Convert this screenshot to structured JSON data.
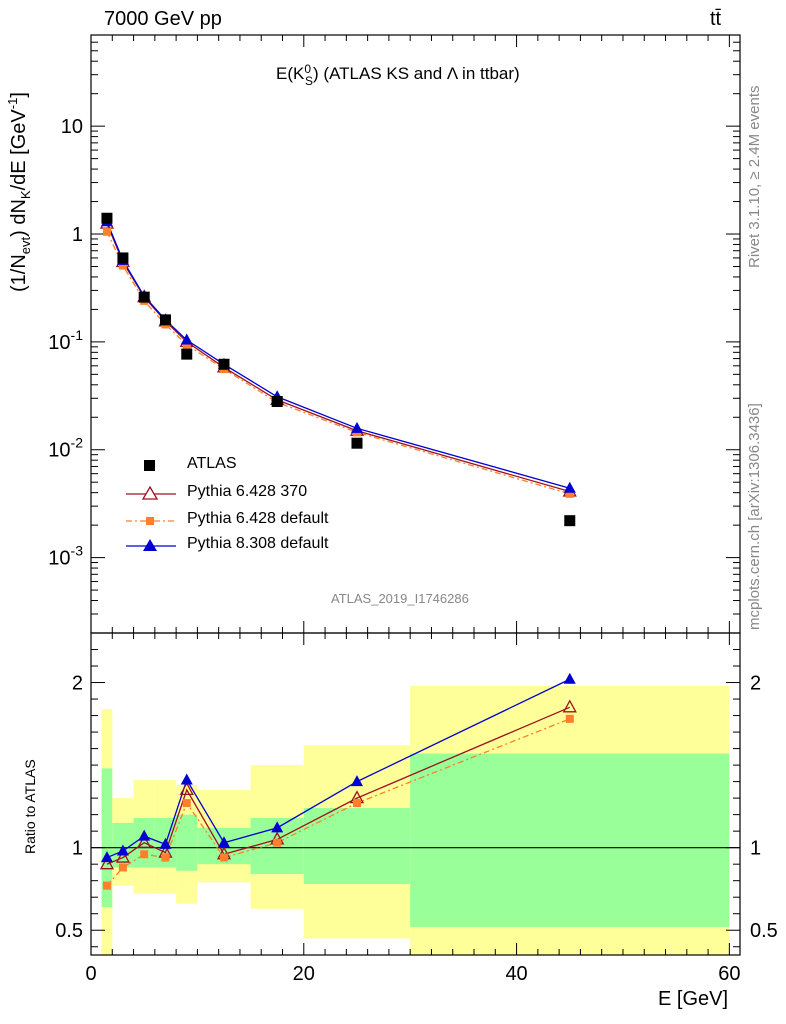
{
  "header": {
    "energy_label": "7000 GeV pp",
    "process_label": "tt̄"
  },
  "side_labels": {
    "rivet": "Rivet 3.1.10, ≥ 2.4M events",
    "mcplots": "mcplots.cern.ch [arXiv:1306.3436]"
  },
  "chart_data": [
    {
      "type": "scatter",
      "title_prefix": "E(K",
      "title_sup": "0",
      "title_sub": "S",
      "title_suffix": ") (ATLAS KS and Λ in ttbar)",
      "analysis_label": "ATLAS_2019_I1746286",
      "ylabel": "(1/N_evt) dN_K/dE [GeV^-1]",
      "ylabel_parts": {
        "a": "(1/N",
        "b": "evt",
        "c": ") dN",
        "d": "K",
        "e": "/dE [GeV",
        "f": "-1",
        "g": "]"
      },
      "yscale": "log",
      "ylim": [
        0.0002,
        70
      ],
      "xlim": [
        0,
        61
      ],
      "yticks": [
        {
          "value": 0.001,
          "base": "10",
          "exp": "-3"
        },
        {
          "value": 0.01,
          "base": "10",
          "exp": "-2"
        },
        {
          "value": 0.1,
          "base": "10",
          "exp": "-1"
        },
        {
          "value": 1,
          "base": "1",
          "exp": ""
        },
        {
          "value": 10,
          "base": "10",
          "exp": ""
        }
      ],
      "bin_edges": [
        1,
        2,
        4,
        6,
        8,
        10,
        15,
        20,
        30,
        60
      ],
      "x": [
        1.5,
        3,
        5,
        7,
        9,
        12.5,
        17.5,
        25,
        45
      ],
      "series": [
        {
          "name": "ATLAS",
          "color": "#000000",
          "marker": "square",
          "line": "none",
          "values": [
            1.4,
            0.6,
            0.26,
            0.16,
            0.077,
            0.062,
            0.028,
            0.0115,
            0.0022
          ]
        },
        {
          "name": "Pythia 6.428 370",
          "color": "#a0111e",
          "marker": "triangle-open",
          "line": "solid",
          "values": [
            1.25,
            0.55,
            0.26,
            0.155,
            0.1,
            0.058,
            0.029,
            0.015,
            0.0041
          ]
        },
        {
          "name": "Pythia 6.428 default",
          "color": "#ff7f2a",
          "marker": "square-small",
          "line": "dashdot",
          "values": [
            1.05,
            0.51,
            0.24,
            0.145,
            0.094,
            0.056,
            0.0275,
            0.0145,
            0.0039
          ]
        },
        {
          "name": "Pythia 8.308 default",
          "color": "#0000d0",
          "marker": "triangle",
          "line": "solid",
          "values": [
            1.3,
            0.57,
            0.265,
            0.16,
            0.104,
            0.062,
            0.031,
            0.0158,
            0.0044
          ]
        }
      ]
    },
    {
      "type": "scatter",
      "ylabel": "Ratio to ATLAS",
      "xlabel": "E [GeV]",
      "ylim": [
        0.35,
        2.3
      ],
      "xlim": [
        0,
        61
      ],
      "yticks": [
        0.5,
        1,
        2
      ],
      "ytick_labels": [
        "0.5",
        "1",
        "2"
      ],
      "xticks": [
        0,
        20,
        40,
        60
      ],
      "xtick_labels": [
        "0",
        "20",
        "40",
        "60"
      ],
      "reference_line": 1,
      "band_inner": [
        [
          0.64,
          1.48
        ],
        [
          0.88,
          1.15
        ],
        [
          0.88,
          1.18
        ],
        [
          0.88,
          1.18
        ],
        [
          0.86,
          1.2
        ],
        [
          0.9,
          1.12
        ],
        [
          0.84,
          1.18
        ],
        [
          0.78,
          1.24
        ],
        [
          0.52,
          1.57
        ]
      ],
      "band_outer": [
        [
          0.3,
          1.84
        ],
        [
          0.77,
          1.3
        ],
        [
          0.72,
          1.41
        ],
        [
          0.72,
          1.41
        ],
        [
          0.66,
          1.38
        ],
        [
          0.79,
          1.35
        ],
        [
          0.63,
          1.5
        ],
        [
          0.45,
          1.62
        ],
        [
          0.3,
          1.98
        ]
      ],
      "band_colors": {
        "inner": "#99ff99",
        "outer": "#ffff99"
      },
      "series": [
        {
          "name": "Pythia 6.428 370",
          "values": [
            0.9,
            0.94,
            1.03,
            0.97,
            1.35,
            0.96,
            1.05,
            1.3,
            1.85
          ]
        },
        {
          "name": "Pythia 6.428 default",
          "values": [
            0.77,
            0.88,
            0.96,
            0.94,
            1.27,
            0.94,
            1.03,
            1.27,
            1.78
          ]
        },
        {
          "name": "Pythia 8.308 default",
          "values": [
            0.94,
            0.98,
            1.07,
            1.02,
            1.41,
            1.03,
            1.12,
            1.4,
            2.02
          ]
        }
      ]
    }
  ]
}
